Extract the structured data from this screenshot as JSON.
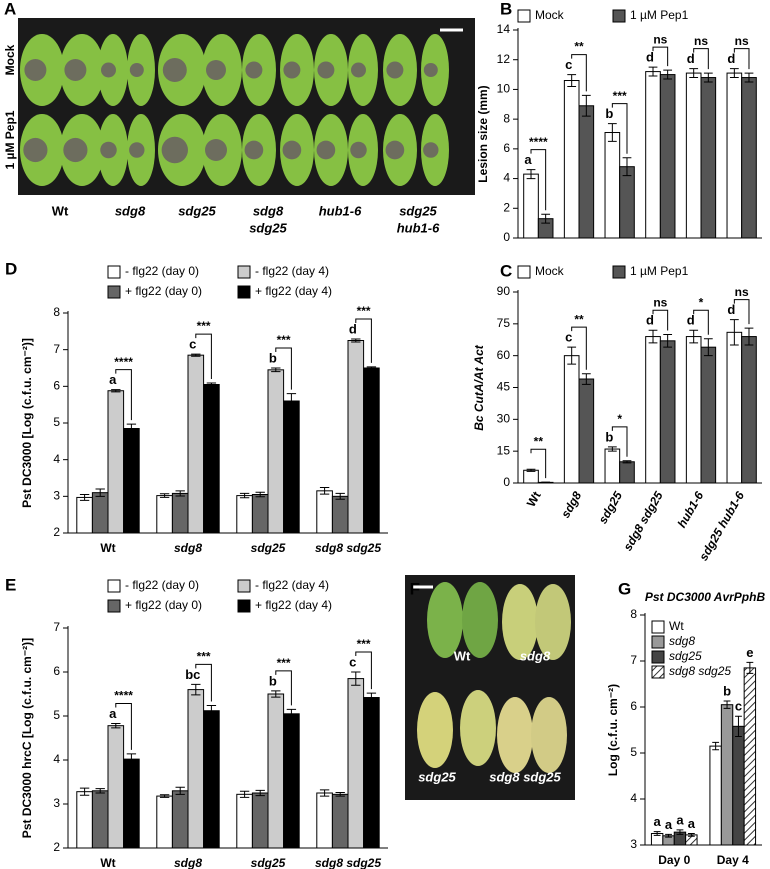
{
  "chart_data": [
    {
      "type": "bar",
      "panel": "B",
      "ylabel": "Lesion size (mm)",
      "ylim": [
        0,
        14
      ],
      "yticks": [
        0,
        2,
        4,
        6,
        8,
        10,
        12,
        14
      ],
      "legend": "top",
      "series": [
        {
          "name": "Mock",
          "color": "#ffffff",
          "values": [
            4.3,
            10.6,
            7.1,
            11.2,
            11.1,
            11.1
          ],
          "errors": [
            0.3,
            0.4,
            0.6,
            0.3,
            0.3,
            0.3
          ],
          "letters": [
            "a",
            "c",
            "b",
            "d",
            "d",
            "d"
          ]
        },
        {
          "name": "1 µM Pep1",
          "color": "#555555",
          "values": [
            1.3,
            8.9,
            4.8,
            11.0,
            10.8,
            10.8
          ],
          "errors": [
            0.3,
            0.7,
            0.6,
            0.3,
            0.3,
            0.3
          ]
        }
      ],
      "significance": [
        "****",
        "**",
        "***",
        "ns",
        "ns",
        "ns"
      ]
    },
    {
      "type": "bar",
      "panel": "C",
      "ylabel": "Bc CutA/At Act",
      "ylim": [
        0,
        90
      ],
      "yticks": [
        0,
        15,
        30,
        45,
        60,
        75,
        90
      ],
      "legend": "top",
      "categories": [
        "Wt",
        "sdg8",
        "sdg25",
        "sdg8 sdg25",
        "hub1-6",
        "sdg25 hub1-6"
      ],
      "series": [
        {
          "name": "Mock",
          "color": "#ffffff",
          "values": [
            6,
            60,
            16,
            69,
            69,
            71
          ],
          "errors": [
            0.5,
            4,
            1,
            3,
            3,
            6
          ],
          "letters": [
            null,
            "c",
            "b",
            "d",
            "d",
            "d"
          ]
        },
        {
          "name": "1 µM Pep1",
          "color": "#555555",
          "values": [
            0.3,
            49,
            10,
            67,
            64,
            69
          ],
          "errors": [
            0.1,
            2.5,
            0.5,
            3,
            4,
            4
          ]
        }
      ],
      "significance": [
        "**",
        "**",
        "*",
        "ns",
        "*",
        "ns"
      ]
    },
    {
      "type": "bar",
      "panel": "D",
      "ylabel": "Pst DC3000 [Log (c.f.u. cm⁻²)]",
      "ylim": [
        2,
        8
      ],
      "yticks": [
        2,
        3,
        4,
        5,
        6,
        7,
        8
      ],
      "legend": "top",
      "categories": [
        "Wt",
        "sdg8",
        "sdg25",
        "sdg8 sdg25"
      ],
      "series": [
        {
          "name": "- flg22 (day 0)",
          "color": "#ffffff",
          "values": [
            2.97,
            3.02,
            3.02,
            3.15
          ],
          "errors": [
            0.08,
            0.05,
            0.06,
            0.09
          ]
        },
        {
          "name": "+ flg22 (day 0)",
          "color": "#666666",
          "values": [
            3.1,
            3.08,
            3.05,
            3.0
          ],
          "errors": [
            0.1,
            0.07,
            0.06,
            0.08
          ]
        },
        {
          "name": "- flg22 (day 4)",
          "color": "#cccccc",
          "values": [
            5.88,
            6.85,
            6.45,
            7.25
          ],
          "errors": [
            0.03,
            0.03,
            0.05,
            0.04
          ],
          "letters": [
            "a",
            "c",
            "b",
            "d"
          ]
        },
        {
          "name": "+ flg22 (day 4)",
          "color": "#000000",
          "values": [
            4.85,
            6.05,
            5.6,
            6.5
          ],
          "errors": [
            0.12,
            0.04,
            0.2,
            0.03
          ]
        }
      ],
      "significance": [
        "****",
        "***",
        "***",
        "***"
      ]
    },
    {
      "type": "bar",
      "panel": "E",
      "ylabel": "Pst DC3000 hrcC [Log (c.f.u. cm⁻²)]",
      "ylim": [
        2,
        7
      ],
      "yticks": [
        2,
        3,
        4,
        5,
        6,
        7
      ],
      "legend": "top",
      "categories": [
        "Wt",
        "sdg8",
        "sdg25",
        "sdg8 sdg25"
      ],
      "series": [
        {
          "name": "- flg22 (day 0)",
          "color": "#ffffff",
          "values": [
            3.28,
            3.18,
            3.22,
            3.25
          ],
          "errors": [
            0.08,
            0.03,
            0.07,
            0.07
          ]
        },
        {
          "name": "+ flg22 (day 0)",
          "color": "#666666",
          "values": [
            3.3,
            3.3,
            3.25,
            3.22
          ],
          "errors": [
            0.05,
            0.08,
            0.06,
            0.04
          ]
        },
        {
          "name": "- flg22 (day 4)",
          "color": "#cccccc",
          "values": [
            4.78,
            5.6,
            5.5,
            5.85
          ],
          "errors": [
            0.05,
            0.12,
            0.07,
            0.15
          ],
          "letters": [
            "a",
            "bc",
            "b",
            "c"
          ]
        },
        {
          "name": "+ flg22 (day 4)",
          "color": "#000000",
          "values": [
            4.02,
            5.12,
            5.05,
            5.42
          ],
          "errors": [
            0.12,
            0.12,
            0.1,
            0.1
          ]
        }
      ],
      "significance": [
        "****",
        "***",
        "***",
        "***"
      ]
    },
    {
      "type": "bar",
      "panel": "G",
      "title": "Pst DC3000 AvrPphB",
      "ylabel": "Log (c.f.u. cm⁻²)",
      "ylim": [
        3,
        8
      ],
      "yticks": [
        3,
        4,
        5,
        6,
        7,
        8
      ],
      "legend": "upper left",
      "categories": [
        "Day 0",
        "Day 4"
      ],
      "series": [
        {
          "name": "Wt",
          "color": "#ffffff",
          "values": [
            3.25,
            5.15
          ],
          "errors": [
            0.04,
            0.08
          ],
          "letters": [
            "a",
            null
          ]
        },
        {
          "name": "sdg8",
          "color": "#999999",
          "values": [
            3.2,
            6.05
          ],
          "errors": [
            0.03,
            0.08
          ],
          "letters": [
            "a",
            "b"
          ]
        },
        {
          "name": "sdg25",
          "color": "#444444",
          "values": [
            3.28,
            5.58
          ],
          "errors": [
            0.05,
            0.22
          ],
          "letters": [
            "a",
            "c"
          ]
        },
        {
          "name": "sdg8 sdg25",
          "color": "#ffffff",
          "pattern": "hatch",
          "values": [
            3.22,
            6.85
          ],
          "errors": [
            0.03,
            0.12
          ],
          "letters": [
            "a",
            "e"
          ]
        }
      ]
    }
  ],
  "photos": [
    {
      "panel": "A",
      "row_labels": [
        "Mock",
        "1 µM Pep1"
      ],
      "column_labels": [
        [
          "Wt"
        ],
        [
          "sdg8"
        ],
        [
          "sdg25"
        ],
        [
          "sdg8",
          "sdg25"
        ],
        [
          "hub1-6"
        ],
        [
          "sdg25",
          "hub1-6"
        ]
      ]
    },
    {
      "panel": "F",
      "labels": [
        "Wt",
        "sdg8",
        "sdg25",
        "sdg8 sdg25"
      ]
    }
  ]
}
